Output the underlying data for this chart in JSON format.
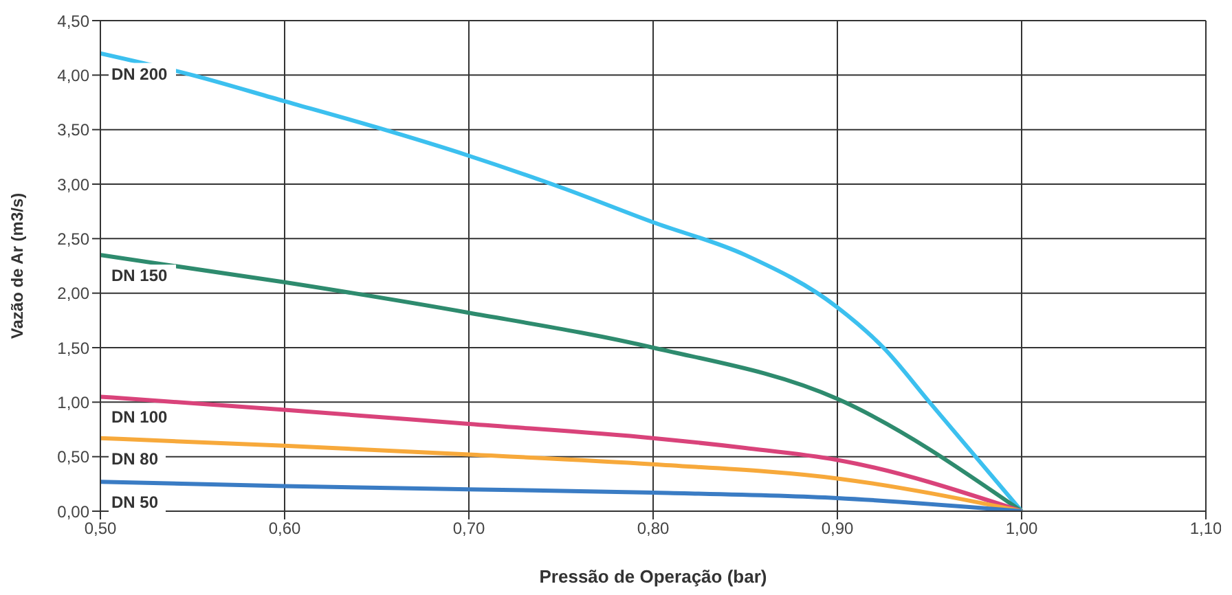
{
  "chart_data": {
    "type": "line",
    "xlabel": "Pressão de Operação (bar)",
    "ylabel": "Vazão de Ar (m3/s)",
    "xlim": [
      0.5,
      1.1
    ],
    "xticks": [
      {
        "value": 0.5,
        "label": "0,50"
      },
      {
        "value": 0.6,
        "label": "0,60"
      },
      {
        "value": 0.7,
        "label": "0,70"
      },
      {
        "value": 0.8,
        "label": "0,80"
      },
      {
        "value": 0.9,
        "label": "0,90"
      },
      {
        "value": 1.0,
        "label": "1,00"
      },
      {
        "value": 1.1,
        "label": "1,10"
      }
    ],
    "ylim": [
      0,
      4.5
    ],
    "yticks": [
      {
        "value": 0,
        "label": "0,00"
      },
      {
        "value": 0.5,
        "label": "0,50"
      },
      {
        "value": 1,
        "label": "1,00"
      },
      {
        "value": 1.5,
        "label": "1,50"
      },
      {
        "value": 2,
        "label": "2,00"
      },
      {
        "value": 2.5,
        "label": "2,50"
      },
      {
        "value": 3,
        "label": "3,00"
      },
      {
        "value": 3.5,
        "label": "3,50"
      },
      {
        "value": 4,
        "label": "4,00"
      },
      {
        "value": 4.5,
        "label": "4,50"
      }
    ],
    "grid": true,
    "legend": false,
    "marker": "none",
    "line_style": "solid",
    "series": [
      {
        "name": "DN 200",
        "color": "#3cc0ef",
        "x": [
          0.5,
          0.55,
          0.6,
          0.65,
          0.7,
          0.75,
          0.8,
          0.85,
          0.9,
          0.925,
          0.95,
          1.0
        ],
        "values": [
          4.2,
          4.0,
          3.76,
          3.52,
          3.26,
          2.97,
          2.65,
          2.35,
          1.87,
          1.5,
          1.0,
          0
        ]
      },
      {
        "name": "DN 150",
        "color": "#2e8b6e",
        "x": [
          0.5,
          0.6,
          0.7,
          0.8,
          0.9,
          1.0
        ],
        "values": [
          2.35,
          2.1,
          1.82,
          1.5,
          1.03,
          0
        ]
      },
      {
        "name": "DN 100",
        "color": "#d9437a",
        "x": [
          0.5,
          0.6,
          0.7,
          0.8,
          0.85,
          0.9,
          1.0
        ],
        "values": [
          1.05,
          0.93,
          0.8,
          0.67,
          0.58,
          0.47,
          0
        ]
      },
      {
        "name": "DN 80",
        "color": "#f7a93b",
        "x": [
          0.5,
          0.6,
          0.7,
          0.8,
          0.9,
          1.0
        ],
        "values": [
          0.67,
          0.6,
          0.52,
          0.43,
          0.3,
          0
        ]
      },
      {
        "name": "DN 50",
        "color": "#3a7cc4",
        "x": [
          0.5,
          0.6,
          0.7,
          0.8,
          0.9,
          1.0
        ],
        "values": [
          0.27,
          0.23,
          0.2,
          0.17,
          0.12,
          0
        ]
      }
    ]
  }
}
